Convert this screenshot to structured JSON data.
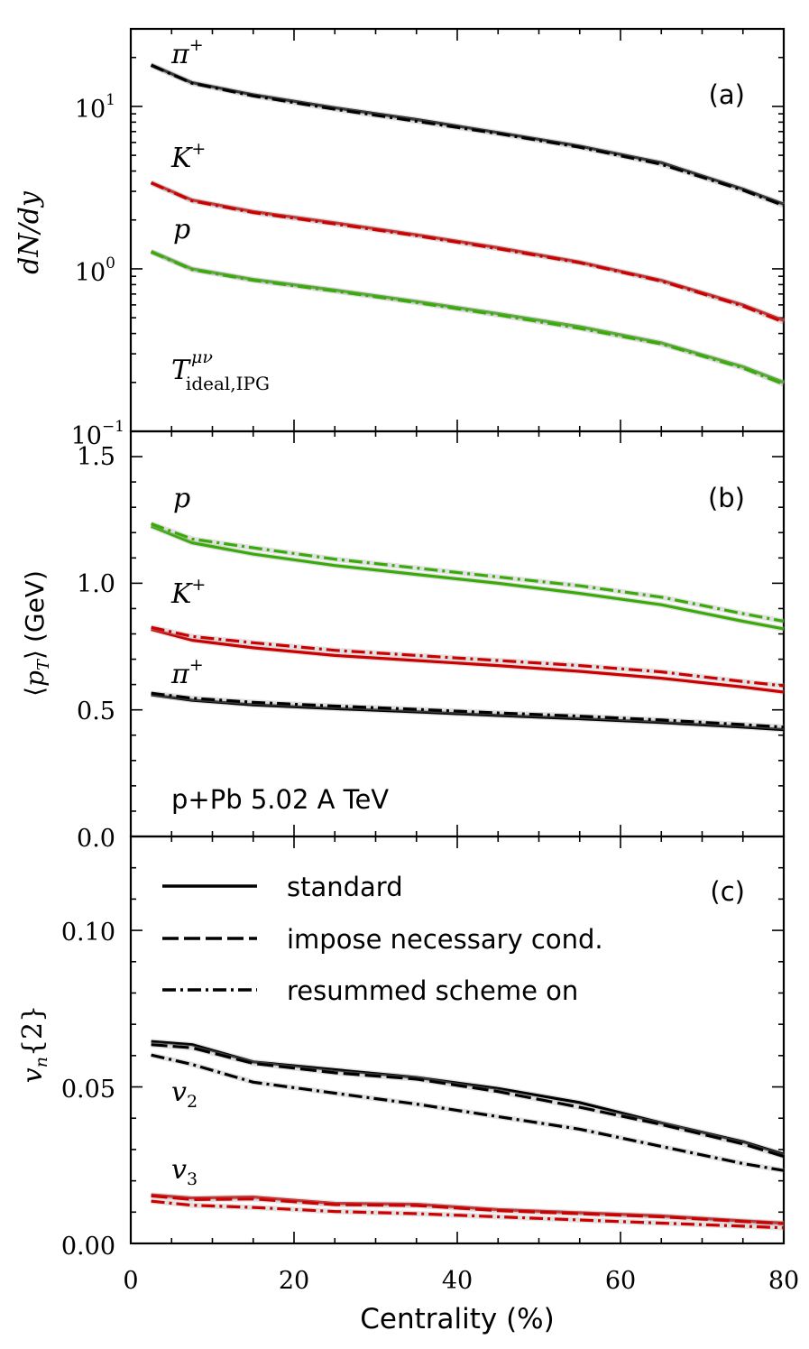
{
  "figure": {
    "xlabel": "Centrality (%)",
    "x_ticks": [
      "0",
      "20",
      "40",
      "60",
      "80"
    ],
    "colors": {
      "pi": "#000000",
      "K": "#cc0000",
      "p": "#3aaa0a",
      "v2": "#000000",
      "v3": "#cc0000",
      "band": "#aaaaaa"
    }
  },
  "legend": {
    "standard": "standard",
    "necessary": "impose necessary cond.",
    "resummed": "resummed scheme on"
  },
  "chart_data": [
    {
      "id": "a",
      "type": "line",
      "panel_label": "(a)",
      "ylabel": "dN/dy",
      "yscale": "log",
      "ylim": [
        0.1,
        30
      ],
      "xlim": [
        0,
        80
      ],
      "y_ticks": [
        "10",
        "10",
        "10"
      ],
      "y_tick_exps": [
        "1",
        "0",
        "−1"
      ],
      "annotation": {
        "main": "T",
        "sup": "μν",
        "sub": "ideal,IPG"
      },
      "species_labels": {
        "pi": "π",
        "pi_sup": "+",
        "K": "K",
        "K_sup": "+",
        "p": "p"
      },
      "x": [
        2.5,
        7.5,
        15,
        25,
        35,
        45,
        55,
        65,
        75,
        80
      ],
      "series": [
        {
          "name": "pi+ standard",
          "color": "pi",
          "style": "solid",
          "values": [
            18.0,
            14.0,
            11.8,
            9.8,
            8.3,
            6.9,
            5.7,
            4.5,
            3.1,
            2.5
          ]
        },
        {
          "name": "pi+ resummed scheme on",
          "color": "pi",
          "style": "dashdot",
          "values": [
            17.9,
            13.9,
            11.6,
            9.6,
            8.1,
            6.8,
            5.6,
            4.4,
            3.05,
            2.45
          ]
        },
        {
          "name": "K+ standard",
          "color": "K",
          "style": "solid",
          "values": [
            3.4,
            2.65,
            2.25,
            1.92,
            1.62,
            1.35,
            1.1,
            0.85,
            0.6,
            0.48
          ]
        },
        {
          "name": "K+ resummed scheme on",
          "color": "K",
          "style": "dashdot",
          "values": [
            3.38,
            2.62,
            2.22,
            1.89,
            1.6,
            1.33,
            1.09,
            0.84,
            0.59,
            0.47
          ]
        },
        {
          "name": "p standard",
          "color": "p",
          "style": "solid",
          "values": [
            1.28,
            1.0,
            0.86,
            0.74,
            0.63,
            0.53,
            0.44,
            0.35,
            0.25,
            0.2
          ]
        },
        {
          "name": "p resummed scheme on",
          "color": "p",
          "style": "dashdot",
          "values": [
            1.27,
            0.99,
            0.85,
            0.73,
            0.62,
            0.52,
            0.43,
            0.345,
            0.245,
            0.195
          ]
        }
      ]
    },
    {
      "id": "b",
      "type": "line",
      "panel_label": "(b)",
      "ylabel": "⟨pₜ⟩ (GeV)",
      "ylabel_parts": {
        "open": "⟨",
        "p": "p",
        "sub": "T",
        "close": "⟩",
        "unit": "(GeV)"
      },
      "ylim": [
        0,
        1.6
      ],
      "xlim": [
        0,
        80
      ],
      "y_ticks": [
        "0.0",
        "0.5",
        "1.0",
        "1.5"
      ],
      "annotation": "p+Pb 5.02 A TeV",
      "species_labels": {
        "p": "p",
        "K": "K",
        "K_sup": "+",
        "pi": "π",
        "pi_sup": "+"
      },
      "x": [
        2.5,
        7.5,
        15,
        25,
        35,
        45,
        55,
        65,
        75,
        80
      ],
      "series": [
        {
          "name": "p standard",
          "color": "p",
          "style": "solid",
          "values": [
            1.225,
            1.16,
            1.115,
            1.07,
            1.035,
            1.0,
            0.96,
            0.915,
            0.85,
            0.82
          ]
        },
        {
          "name": "p resummed scheme on",
          "color": "p",
          "style": "dashdot",
          "values": [
            1.235,
            1.175,
            1.14,
            1.095,
            1.06,
            1.025,
            0.99,
            0.945,
            0.88,
            0.85
          ]
        },
        {
          "name": "K+ standard",
          "color": "K",
          "style": "solid",
          "values": [
            0.818,
            0.775,
            0.745,
            0.715,
            0.695,
            0.675,
            0.652,
            0.625,
            0.59,
            0.57
          ]
        },
        {
          "name": "K+ resummed scheme on",
          "color": "K",
          "style": "dashdot",
          "values": [
            0.826,
            0.79,
            0.765,
            0.735,
            0.715,
            0.695,
            0.675,
            0.65,
            0.612,
            0.595
          ]
        },
        {
          "name": "pi+ standard",
          "color": "pi",
          "style": "solid",
          "values": [
            0.56,
            0.538,
            0.52,
            0.505,
            0.492,
            0.478,
            0.465,
            0.45,
            0.432,
            0.422
          ]
        },
        {
          "name": "pi+ resummed scheme on",
          "color": "pi",
          "style": "dashdot",
          "values": [
            0.566,
            0.546,
            0.53,
            0.515,
            0.502,
            0.488,
            0.475,
            0.46,
            0.442,
            0.432
          ]
        }
      ]
    },
    {
      "id": "c",
      "type": "line",
      "panel_label": "(c)",
      "ylabel": "vₙ{2}",
      "ylabel_parts": {
        "v": "v",
        "sub": "n",
        "rest": "{2}"
      },
      "ylim": [
        0,
        0.13
      ],
      "xlim": [
        0,
        80
      ],
      "y_ticks": [
        "0.00",
        "0.05",
        "0.10"
      ],
      "harmonic_labels": {
        "v2": "v",
        "v2_sub": "2",
        "v3": "v",
        "v3_sub": "3"
      },
      "x": [
        2.5,
        7.5,
        15,
        25,
        35,
        45,
        55,
        65,
        75,
        80
      ],
      "series": [
        {
          "name": "v2 standard",
          "color": "v2",
          "style": "solid",
          "values": [
            0.0645,
            0.0635,
            0.058,
            0.0555,
            0.053,
            0.0495,
            0.045,
            0.0385,
            0.0325,
            0.0285
          ]
        },
        {
          "name": "v2 impose necessary cond.",
          "color": "v2",
          "style": "dashed",
          "values": [
            0.0635,
            0.0625,
            0.0575,
            0.0545,
            0.0525,
            0.0485,
            0.0435,
            0.038,
            0.0318,
            0.0278
          ]
        },
        {
          "name": "v2 resummed scheme on",
          "color": "v2",
          "style": "dashdot",
          "values": [
            0.0602,
            0.0572,
            0.0515,
            0.048,
            0.0445,
            0.0405,
            0.0365,
            0.031,
            0.0255,
            0.0233
          ]
        },
        {
          "name": "v3 standard",
          "color": "v3",
          "style": "solid",
          "values": [
            0.0155,
            0.0145,
            0.0148,
            0.0128,
            0.0125,
            0.0108,
            0.0098,
            0.0088,
            0.0072,
            0.0065
          ]
        },
        {
          "name": "v3 impose necessary cond.",
          "color": "v3",
          "style": "dashed",
          "values": [
            0.0152,
            0.014,
            0.0142,
            0.0124,
            0.0121,
            0.0105,
            0.0095,
            0.0085,
            0.007,
            0.0063
          ]
        },
        {
          "name": "v3 resummed scheme on",
          "color": "v3",
          "style": "dashdot",
          "values": [
            0.0135,
            0.0122,
            0.0115,
            0.0102,
            0.0095,
            0.0085,
            0.0075,
            0.0065,
            0.0055,
            0.005
          ]
        }
      ]
    }
  ]
}
